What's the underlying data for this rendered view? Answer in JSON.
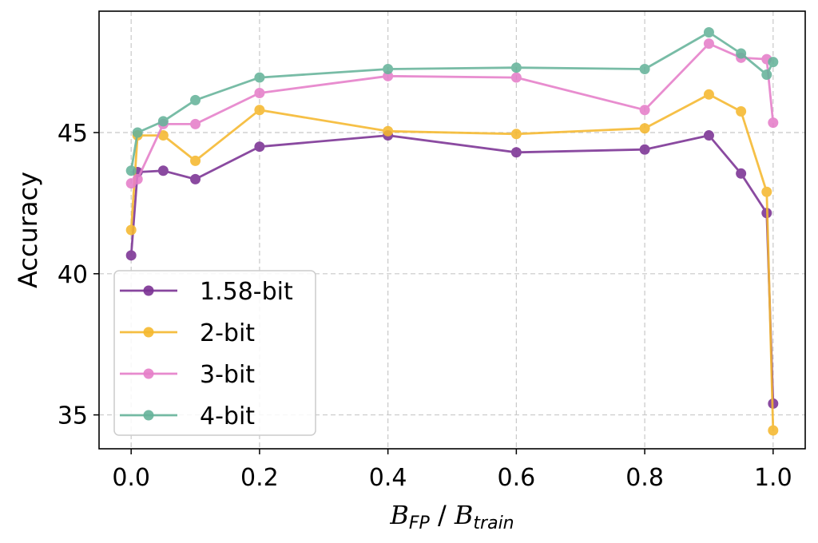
{
  "chart_data": {
    "type": "line",
    "title": "",
    "xlabel": "B_FP / B_train",
    "xlabel_parts": {
      "main1": "B",
      "sub1": "FP",
      "sep": " / ",
      "main2": "B",
      "sub2": "train"
    },
    "ylabel": "Accuracy",
    "xlim": [
      -0.05,
      1.05
    ],
    "ylim": [
      33.8,
      49.3
    ],
    "xticks": [
      0.0,
      0.2,
      0.4,
      0.6,
      0.8,
      1.0
    ],
    "xtick_labels": [
      "0.0",
      "0.2",
      "0.4",
      "0.6",
      "0.8",
      "1.0"
    ],
    "yticks": [
      35,
      40,
      45
    ],
    "ytick_labels": [
      "35",
      "40",
      "45"
    ],
    "grid": true,
    "legend_position": "lower-left",
    "x": [
      0.0,
      0.01,
      0.05,
      0.1,
      0.2,
      0.4,
      0.6,
      0.8,
      0.9,
      0.95,
      0.99,
      1.0
    ],
    "series": [
      {
        "name": "1.58-bit",
        "color": "#7B3294",
        "values": [
          40.65,
          43.6,
          43.65,
          43.35,
          44.5,
          44.9,
          44.3,
          44.4,
          44.9,
          43.55,
          42.15,
          35.4
        ]
      },
      {
        "name": "2-bit",
        "color": "#F5B82E",
        "values": [
          41.55,
          44.9,
          44.9,
          44.0,
          45.8,
          45.05,
          44.95,
          45.15,
          46.35,
          45.75,
          42.9,
          34.45
        ]
      },
      {
        "name": "3-bit",
        "color": "#E57EC9",
        "values": [
          43.2,
          43.35,
          45.3,
          45.3,
          46.4,
          47.0,
          46.95,
          45.8,
          48.15,
          47.65,
          47.6,
          45.35
        ]
      },
      {
        "name": "4-bit",
        "color": "#66B39A",
        "values": [
          43.65,
          45.0,
          45.4,
          46.15,
          46.95,
          47.25,
          47.3,
          47.25,
          48.55,
          47.8,
          47.05,
          47.5
        ]
      }
    ]
  }
}
